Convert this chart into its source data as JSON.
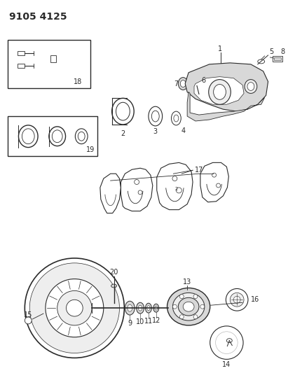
{
  "title": "9105 4125",
  "bg_color": "#ffffff",
  "line_color": "#2a2a2a",
  "title_fontsize": 10,
  "label_fontsize": 7,
  "figsize": [
    4.11,
    5.33
  ],
  "dpi": 100,
  "gray_fill": "#d8d8d8",
  "light_gray": "#eeeeee",
  "white": "#ffffff"
}
